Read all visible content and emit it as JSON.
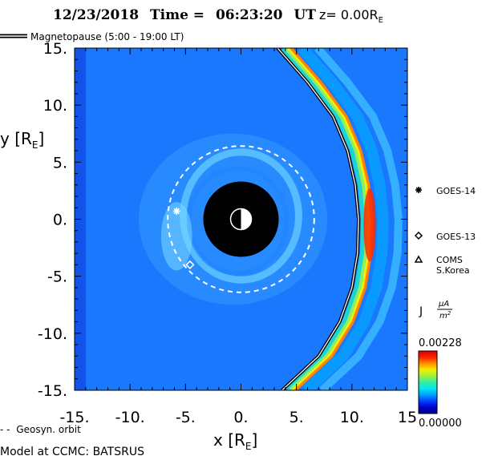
{
  "title": {
    "date": "12/23/2018",
    "time_label": "Time =",
    "time": "06:23:20",
    "time_unit": "UT",
    "z_label": "z= 0.00R",
    "z_sub": "E"
  },
  "legend": {
    "magnetopause": "Magnetopause (5:00 - 19:00 LT)",
    "geosync": "Geosyn. orbit",
    "model": "Model at CCMC: BATSRUS"
  },
  "colorbar": {
    "label_main": "J",
    "unit_num": "μA",
    "unit_den": "m",
    "unit_den_sup": "2",
    "max_label": "0.00228",
    "min_label": "0.00000",
    "colors": [
      "#000080",
      "#0000d0",
      "#0040ff",
      "#00a0ff",
      "#00e8f0",
      "#30f0a0",
      "#a0f040",
      "#f0f000",
      "#ff9000",
      "#ff2000",
      "#e00000"
    ]
  },
  "satellites": [
    {
      "name": "GOES-14",
      "symbol": "asterisk",
      "x": -5.8,
      "y": 0.7
    },
    {
      "name": "GOES-13",
      "symbol": "diamond",
      "x": -4.6,
      "y": -4.0
    },
    {
      "name": "COMS S.Korea",
      "line1": "COMS",
      "line2": "S.Korea",
      "symbol": "triangle"
    }
  ],
  "chart_data": {
    "type": "heatmap",
    "title": "12/23/2018 Time = 06:23:20 UT z= 0.00RE",
    "xlabel": "x [RE]",
    "ylabel": "y [RE]",
    "xlim": [
      -15,
      15
    ],
    "ylim": [
      -15,
      15
    ],
    "x_ticks": [
      "-15.",
      "-10.",
      "-5.",
      "0.",
      "5.",
      "10.",
      "15"
    ],
    "y_ticks": [
      "15.",
      "10.",
      "5.",
      "0.",
      "-5.",
      "-10.",
      "-15."
    ],
    "earth_radius": 3.4,
    "geosync_radius": 6.6,
    "magnetopause_curve": [
      {
        "x": 3.3,
        "y": 15
      },
      {
        "x": 6.0,
        "y": 12
      },
      {
        "x": 8.3,
        "y": 9
      },
      {
        "x": 9.6,
        "y": 6
      },
      {
        "x": 10.3,
        "y": 3
      },
      {
        "x": 10.6,
        "y": 0
      },
      {
        "x": 10.5,
        "y": -3
      },
      {
        "x": 10.0,
        "y": -6
      },
      {
        "x": 8.9,
        "y": -9
      },
      {
        "x": 7.0,
        "y": -12
      },
      {
        "x": 3.7,
        "y": -15
      }
    ],
    "current_range": [
      0.0,
      0.00228
    ],
    "current_unit": "μA/m2"
  }
}
